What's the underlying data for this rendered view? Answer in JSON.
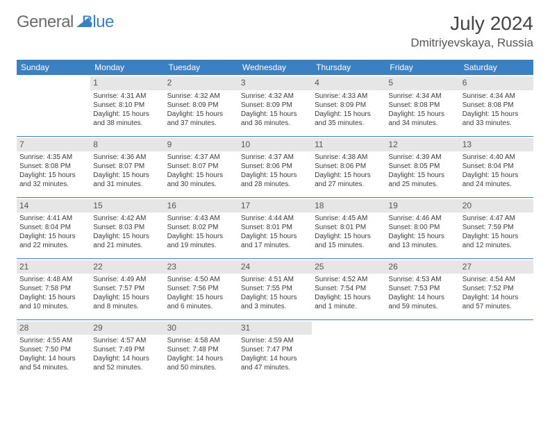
{
  "logo": {
    "word1": "General",
    "word2": "Blue"
  },
  "header": {
    "title": "July 2024",
    "location": "Dmitriyevskaya, Russia"
  },
  "colors": {
    "accent": "#3a80c3",
    "daynum_bg": "#e6e6e6",
    "text": "#3a3a3a",
    "bg": "#ffffff"
  },
  "days": [
    "Sunday",
    "Monday",
    "Tuesday",
    "Wednesday",
    "Thursday",
    "Friday",
    "Saturday"
  ],
  "weeks": [
    [
      null,
      {
        "n": "1",
        "sr": "Sunrise: 4:31 AM",
        "ss": "Sunset: 8:10 PM",
        "d1": "Daylight: 15 hours",
        "d2": "and 38 minutes."
      },
      {
        "n": "2",
        "sr": "Sunrise: 4:32 AM",
        "ss": "Sunset: 8:09 PM",
        "d1": "Daylight: 15 hours",
        "d2": "and 37 minutes."
      },
      {
        "n": "3",
        "sr": "Sunrise: 4:32 AM",
        "ss": "Sunset: 8:09 PM",
        "d1": "Daylight: 15 hours",
        "d2": "and 36 minutes."
      },
      {
        "n": "4",
        "sr": "Sunrise: 4:33 AM",
        "ss": "Sunset: 8:09 PM",
        "d1": "Daylight: 15 hours",
        "d2": "and 35 minutes."
      },
      {
        "n": "5",
        "sr": "Sunrise: 4:34 AM",
        "ss": "Sunset: 8:08 PM",
        "d1": "Daylight: 15 hours",
        "d2": "and 34 minutes."
      },
      {
        "n": "6",
        "sr": "Sunrise: 4:34 AM",
        "ss": "Sunset: 8:08 PM",
        "d1": "Daylight: 15 hours",
        "d2": "and 33 minutes."
      }
    ],
    [
      {
        "n": "7",
        "sr": "Sunrise: 4:35 AM",
        "ss": "Sunset: 8:08 PM",
        "d1": "Daylight: 15 hours",
        "d2": "and 32 minutes."
      },
      {
        "n": "8",
        "sr": "Sunrise: 4:36 AM",
        "ss": "Sunset: 8:07 PM",
        "d1": "Daylight: 15 hours",
        "d2": "and 31 minutes."
      },
      {
        "n": "9",
        "sr": "Sunrise: 4:37 AM",
        "ss": "Sunset: 8:07 PM",
        "d1": "Daylight: 15 hours",
        "d2": "and 30 minutes."
      },
      {
        "n": "10",
        "sr": "Sunrise: 4:37 AM",
        "ss": "Sunset: 8:06 PM",
        "d1": "Daylight: 15 hours",
        "d2": "and 28 minutes."
      },
      {
        "n": "11",
        "sr": "Sunrise: 4:38 AM",
        "ss": "Sunset: 8:06 PM",
        "d1": "Daylight: 15 hours",
        "d2": "and 27 minutes."
      },
      {
        "n": "12",
        "sr": "Sunrise: 4:39 AM",
        "ss": "Sunset: 8:05 PM",
        "d1": "Daylight: 15 hours",
        "d2": "and 25 minutes."
      },
      {
        "n": "13",
        "sr": "Sunrise: 4:40 AM",
        "ss": "Sunset: 8:04 PM",
        "d1": "Daylight: 15 hours",
        "d2": "and 24 minutes."
      }
    ],
    [
      {
        "n": "14",
        "sr": "Sunrise: 4:41 AM",
        "ss": "Sunset: 8:04 PM",
        "d1": "Daylight: 15 hours",
        "d2": "and 22 minutes."
      },
      {
        "n": "15",
        "sr": "Sunrise: 4:42 AM",
        "ss": "Sunset: 8:03 PM",
        "d1": "Daylight: 15 hours",
        "d2": "and 21 minutes."
      },
      {
        "n": "16",
        "sr": "Sunrise: 4:43 AM",
        "ss": "Sunset: 8:02 PM",
        "d1": "Daylight: 15 hours",
        "d2": "and 19 minutes."
      },
      {
        "n": "17",
        "sr": "Sunrise: 4:44 AM",
        "ss": "Sunset: 8:01 PM",
        "d1": "Daylight: 15 hours",
        "d2": "and 17 minutes."
      },
      {
        "n": "18",
        "sr": "Sunrise: 4:45 AM",
        "ss": "Sunset: 8:01 PM",
        "d1": "Daylight: 15 hours",
        "d2": "and 15 minutes."
      },
      {
        "n": "19",
        "sr": "Sunrise: 4:46 AM",
        "ss": "Sunset: 8:00 PM",
        "d1": "Daylight: 15 hours",
        "d2": "and 13 minutes."
      },
      {
        "n": "20",
        "sr": "Sunrise: 4:47 AM",
        "ss": "Sunset: 7:59 PM",
        "d1": "Daylight: 15 hours",
        "d2": "and 12 minutes."
      }
    ],
    [
      {
        "n": "21",
        "sr": "Sunrise: 4:48 AM",
        "ss": "Sunset: 7:58 PM",
        "d1": "Daylight: 15 hours",
        "d2": "and 10 minutes."
      },
      {
        "n": "22",
        "sr": "Sunrise: 4:49 AM",
        "ss": "Sunset: 7:57 PM",
        "d1": "Daylight: 15 hours",
        "d2": "and 8 minutes."
      },
      {
        "n": "23",
        "sr": "Sunrise: 4:50 AM",
        "ss": "Sunset: 7:56 PM",
        "d1": "Daylight: 15 hours",
        "d2": "and 6 minutes."
      },
      {
        "n": "24",
        "sr": "Sunrise: 4:51 AM",
        "ss": "Sunset: 7:55 PM",
        "d1": "Daylight: 15 hours",
        "d2": "and 3 minutes."
      },
      {
        "n": "25",
        "sr": "Sunrise: 4:52 AM",
        "ss": "Sunset: 7:54 PM",
        "d1": "Daylight: 15 hours",
        "d2": "and 1 minute."
      },
      {
        "n": "26",
        "sr": "Sunrise: 4:53 AM",
        "ss": "Sunset: 7:53 PM",
        "d1": "Daylight: 14 hours",
        "d2": "and 59 minutes."
      },
      {
        "n": "27",
        "sr": "Sunrise: 4:54 AM",
        "ss": "Sunset: 7:52 PM",
        "d1": "Daylight: 14 hours",
        "d2": "and 57 minutes."
      }
    ],
    [
      {
        "n": "28",
        "sr": "Sunrise: 4:55 AM",
        "ss": "Sunset: 7:50 PM",
        "d1": "Daylight: 14 hours",
        "d2": "and 54 minutes."
      },
      {
        "n": "29",
        "sr": "Sunrise: 4:57 AM",
        "ss": "Sunset: 7:49 PM",
        "d1": "Daylight: 14 hours",
        "d2": "and 52 minutes."
      },
      {
        "n": "30",
        "sr": "Sunrise: 4:58 AM",
        "ss": "Sunset: 7:48 PM",
        "d1": "Daylight: 14 hours",
        "d2": "and 50 minutes."
      },
      {
        "n": "31",
        "sr": "Sunrise: 4:59 AM",
        "ss": "Sunset: 7:47 PM",
        "d1": "Daylight: 14 hours",
        "d2": "and 47 minutes."
      },
      null,
      null,
      null
    ]
  ]
}
